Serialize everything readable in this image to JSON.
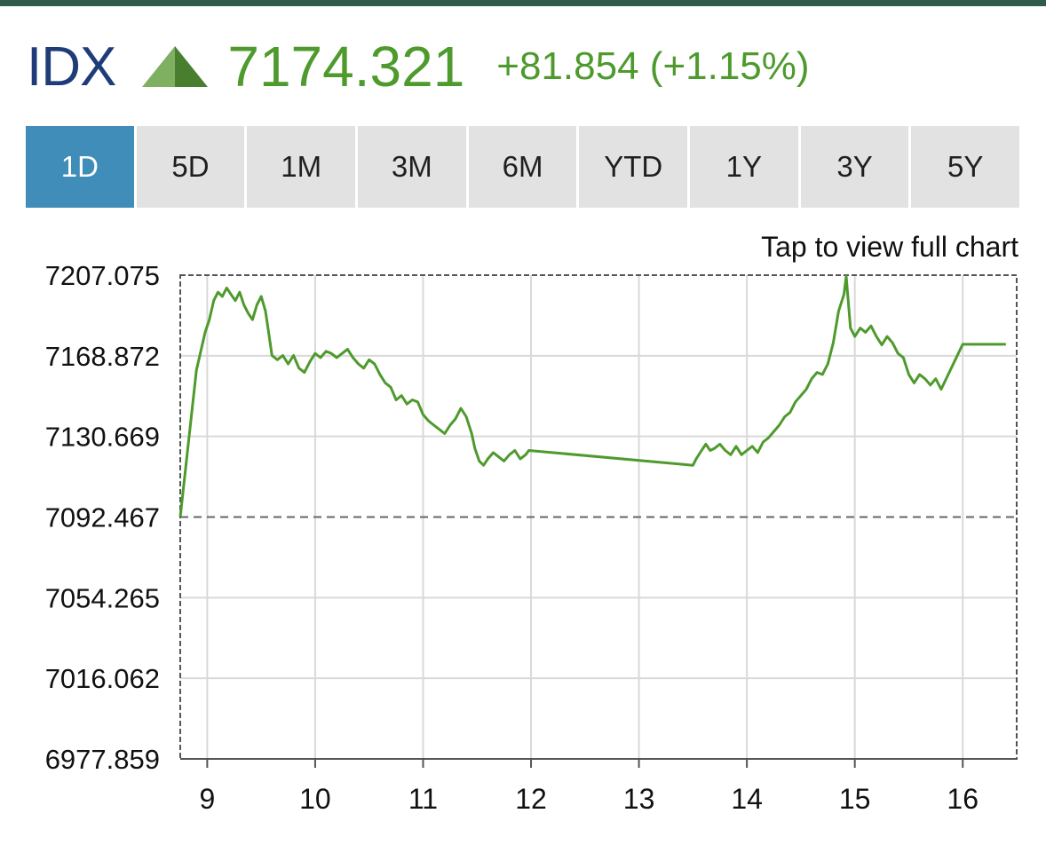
{
  "header": {
    "symbol": "IDX",
    "trend_icon": "up-triangle-icon",
    "price": "7174.321",
    "change": "+81.854 (+1.15%)"
  },
  "range_tabs": [
    {
      "label": "1D",
      "active": true
    },
    {
      "label": "5D",
      "active": false
    },
    {
      "label": "1M",
      "active": false
    },
    {
      "label": "3M",
      "active": false
    },
    {
      "label": "6M",
      "active": false
    },
    {
      "label": "YTD",
      "active": false
    },
    {
      "label": "1Y",
      "active": false
    },
    {
      "label": "3Y",
      "active": false
    },
    {
      "label": "5Y",
      "active": false
    }
  ],
  "chart_link": "Tap to view full chart",
  "colors": {
    "line": "#4e9a2d",
    "positive": "#4e9a2d",
    "symbol": "#1e3d78",
    "tab_active": "#3f8db8",
    "tab_inactive": "#e2e2e2",
    "grid": "#d9d9d9",
    "frame": "#555555",
    "reference_line": "#666666"
  },
  "chart_data": {
    "type": "line",
    "title": "",
    "xlabel": "",
    "ylabel": "",
    "ylim": [
      6977.859,
      7207.075
    ],
    "yticks": [
      "7207.075",
      "7168.872",
      "7130.669",
      "7092.467",
      "7054.265",
      "7016.062",
      "6977.859"
    ],
    "xlim": [
      8.75,
      16.5
    ],
    "xticks": [
      "9",
      "10",
      "11",
      "12",
      "13",
      "14",
      "15",
      "16"
    ],
    "grid": true,
    "reference_line": {
      "value": 7092.467,
      "style": "dashed"
    },
    "series": [
      {
        "x": [
          8.75,
          8.9,
          8.98,
          9.02,
          9.06,
          9.1,
          9.14,
          9.18,
          9.22,
          9.26,
          9.3,
          9.34,
          9.38,
          9.42,
          9.46,
          9.5,
          9.54,
          9.58,
          9.6,
          9.65,
          9.7,
          9.75,
          9.8,
          9.85,
          9.9,
          9.95,
          10.0,
          10.05,
          10.1,
          10.15,
          10.2,
          10.25,
          10.3,
          10.35,
          10.4,
          10.45,
          10.5,
          10.55,
          10.6,
          10.65,
          10.7,
          10.75,
          10.8,
          10.85,
          10.9,
          10.95,
          11.0,
          11.05,
          11.1,
          11.15,
          11.2,
          11.25,
          11.3,
          11.35,
          11.4,
          11.45,
          11.48,
          11.52,
          11.56,
          11.6,
          11.65,
          11.7,
          11.75,
          11.8,
          11.85,
          11.9,
          11.95,
          11.98,
          13.5,
          13.53,
          13.58,
          13.62,
          13.66,
          13.7,
          13.75,
          13.8,
          13.85,
          13.9,
          13.95,
          14.0,
          14.05,
          14.1,
          14.15,
          14.2,
          14.25,
          14.3,
          14.35,
          14.4,
          14.45,
          14.5,
          14.55,
          14.6,
          14.65,
          14.7,
          14.75,
          14.8,
          14.85,
          14.9,
          14.92,
          14.96,
          15.0,
          15.05,
          15.1,
          15.15,
          15.2,
          15.25,
          15.3,
          15.35,
          15.4,
          15.45,
          15.5,
          15.55,
          15.6,
          15.65,
          15.7,
          15.75,
          15.8,
          16.0,
          16.4
        ],
        "y": [
          7092.5,
          7162.0,
          7180.0,
          7186.0,
          7195.0,
          7199.0,
          7197.0,
          7201.0,
          7198.0,
          7195.0,
          7199.0,
          7193.0,
          7189.0,
          7186.0,
          7193.0,
          7197.0,
          7190.0,
          7176.0,
          7169.0,
          7167.0,
          7169.0,
          7165.0,
          7169.0,
          7163.0,
          7161.0,
          7166.0,
          7170.0,
          7168.0,
          7171.0,
          7170.0,
          7168.0,
          7170.0,
          7172.0,
          7168.0,
          7165.0,
          7163.0,
          7167.0,
          7165.0,
          7160.0,
          7156.0,
          7154.0,
          7148.0,
          7150.0,
          7146.0,
          7148.0,
          7147.0,
          7141.0,
          7138.0,
          7136.0,
          7134.0,
          7132.0,
          7136.0,
          7139.0,
          7144.0,
          7140.0,
          7132.0,
          7125.0,
          7119.0,
          7117.0,
          7120.0,
          7123.0,
          7121.0,
          7119.0,
          7122.0,
          7124.0,
          7120.0,
          7122.0,
          7124.0,
          7117.0,
          7120.0,
          7124.0,
          7127.0,
          7124.0,
          7125.0,
          7127.0,
          7124.0,
          7122.0,
          7126.0,
          7122.0,
          7124.0,
          7126.0,
          7123.0,
          7128.0,
          7130.0,
          7133.0,
          7136.0,
          7140.0,
          7142.0,
          7147.0,
          7150.0,
          7153.0,
          7158.0,
          7161.0,
          7160.0,
          7165.0,
          7175.0,
          7190.0,
          7198.0,
          7206.5,
          7182.0,
          7178.0,
          7182.0,
          7180.0,
          7183.0,
          7178.0,
          7174.0,
          7178.0,
          7175.0,
          7170.0,
          7168.0,
          7160.0,
          7156.0,
          7160.0,
          7158.0,
          7155.0,
          7158.0,
          7153.0,
          7174.3,
          7174.3
        ]
      }
    ]
  }
}
